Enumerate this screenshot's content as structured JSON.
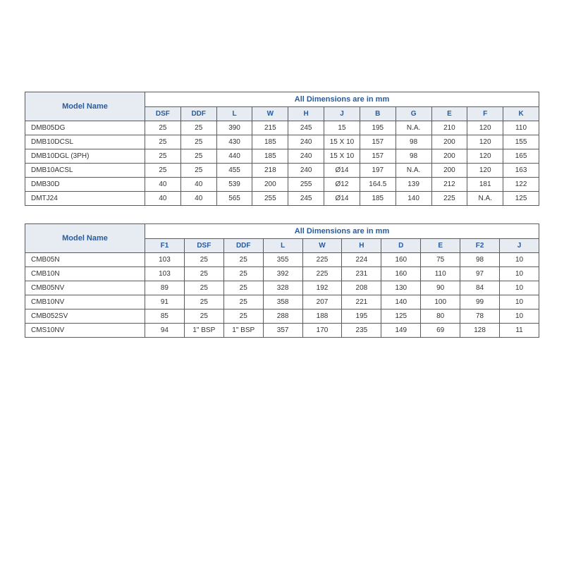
{
  "table1": {
    "modelHeader": "Model  Name",
    "dimHeader": "All Dimensions are in mm",
    "columns": [
      "DSF",
      "DDF",
      "L",
      "W",
      "H",
      "J",
      "B",
      "G",
      "E",
      "F",
      "K"
    ],
    "rows": [
      {
        "model": "DMB05DG",
        "cells": [
          "25",
          "25",
          "390",
          "215",
          "245",
          "15",
          "195",
          "N.A.",
          "210",
          "120",
          "110"
        ]
      },
      {
        "model": "DMB10DCSL",
        "cells": [
          "25",
          "25",
          "430",
          "185",
          "240",
          "15 X 10",
          "157",
          "98",
          "200",
          "120",
          "155"
        ]
      },
      {
        "model": "DMB10DGL (3PH)",
        "cells": [
          "25",
          "25",
          "440",
          "185",
          "240",
          "15 X 10",
          "157",
          "98",
          "200",
          "120",
          "165"
        ]
      },
      {
        "model": "DMB10ACSL",
        "cells": [
          "25",
          "25",
          "455",
          "218",
          "240",
          "Ø14",
          "197",
          "N.A.",
          "200",
          "120",
          "163"
        ]
      },
      {
        "model": "DMB30D",
        "cells": [
          "40",
          "40",
          "539",
          "200",
          "255",
          "Ø12",
          "164.5",
          "139",
          "212",
          "181",
          "122"
        ]
      },
      {
        "model": "DMTJ24",
        "cells": [
          "40",
          "40",
          "565",
          "255",
          "245",
          "Ø14",
          "185",
          "140",
          "225",
          "N.A.",
          "125"
        ]
      }
    ]
  },
  "table2": {
    "modelHeader": "Model  Name",
    "dimHeader": "All Dimensions are in mm",
    "columns": [
      "F1",
      "DSF",
      "DDF",
      "L",
      "W",
      "H",
      "D",
      "E",
      "F2",
      "J"
    ],
    "rows": [
      {
        "model": "CMB05N",
        "cells": [
          "103",
          "25",
          "25",
          "355",
          "225",
          "224",
          "160",
          "75",
          "98",
          "10"
        ]
      },
      {
        "model": "CMB10N",
        "cells": [
          "103",
          "25",
          "25",
          "392",
          "225",
          "231",
          "160",
          "110",
          "97",
          "10"
        ]
      },
      {
        "model": "CMB05NV",
        "cells": [
          "89",
          "25",
          "25",
          "328",
          "192",
          "208",
          "130",
          "90",
          "84",
          "10"
        ]
      },
      {
        "model": "CMB10NV",
        "cells": [
          "91",
          "25",
          "25",
          "358",
          "207",
          "221",
          "140",
          "100",
          "99",
          "10"
        ]
      },
      {
        "model": "CMB052SV",
        "cells": [
          "85",
          "25",
          "25",
          "288",
          "188",
          "195",
          "125",
          "80",
          "78",
          "10"
        ]
      },
      {
        "model": "CMS10NV",
        "cells": [
          "94",
          "1\" BSP",
          "1\" BSP",
          "357",
          "170",
          "235",
          "149",
          "69",
          "128",
          "11"
        ]
      }
    ]
  }
}
